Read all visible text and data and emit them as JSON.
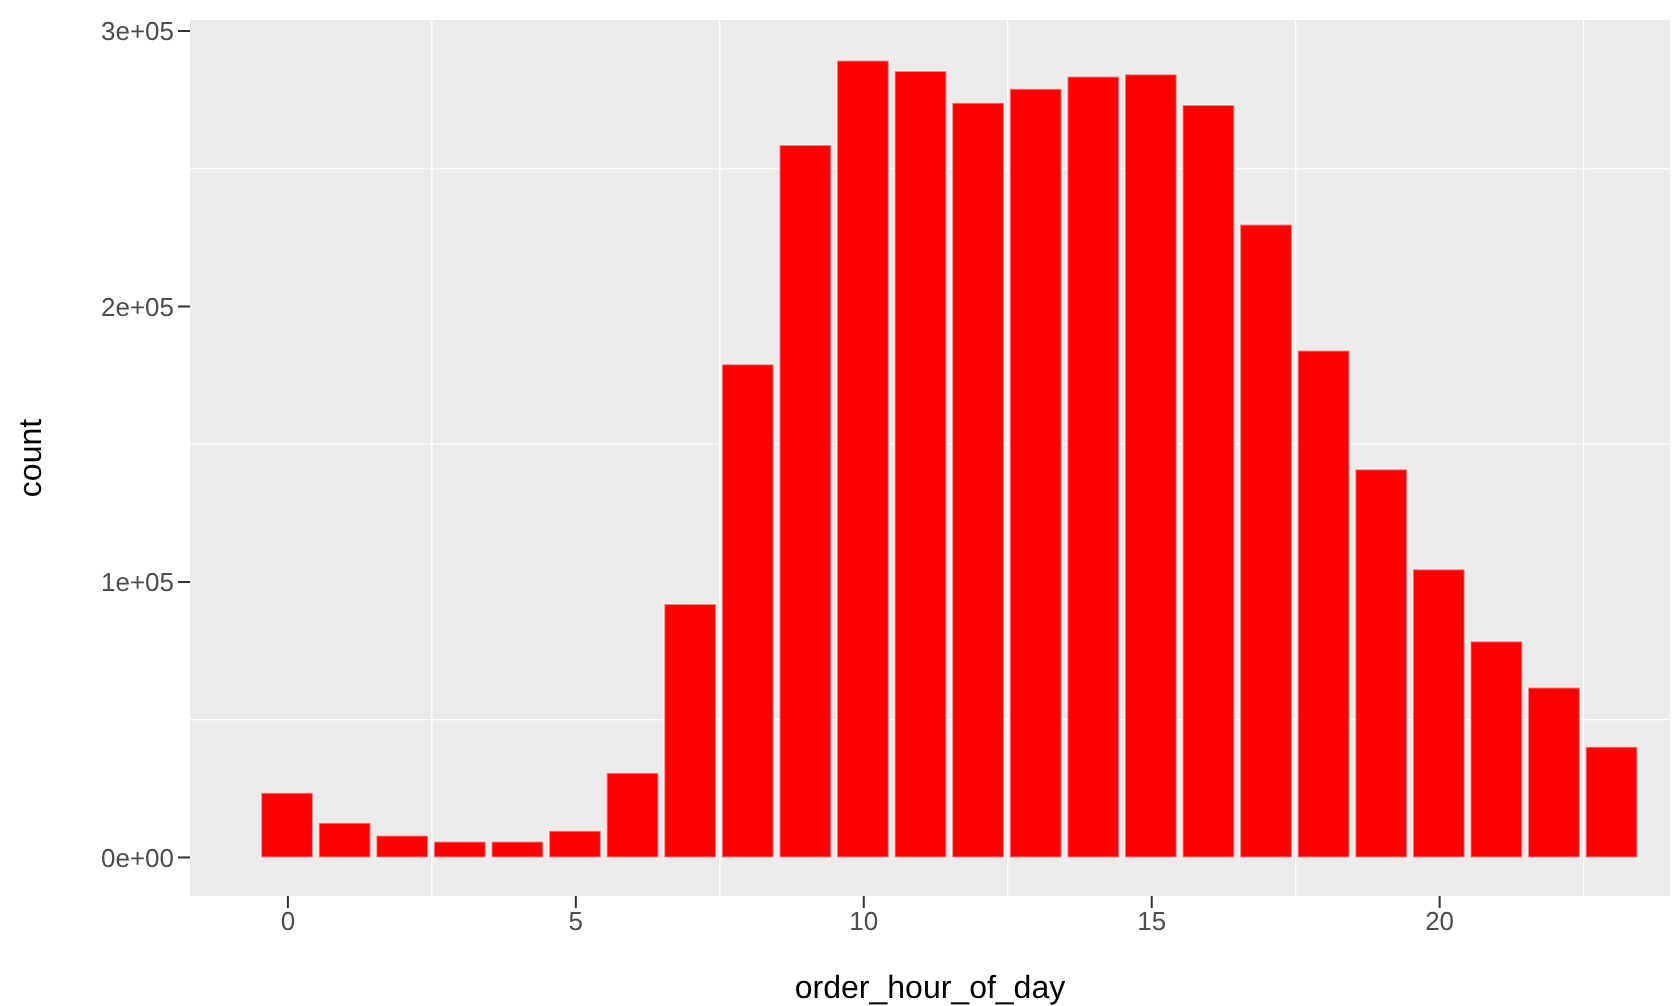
{
  "chart_data": {
    "type": "bar",
    "xlabel": "order_hour_of_day",
    "ylabel": "count",
    "x": [
      0,
      1,
      2,
      3,
      4,
      5,
      6,
      7,
      8,
      9,
      10,
      11,
      12,
      13,
      14,
      15,
      16,
      17,
      18,
      19,
      20,
      21,
      22,
      23
    ],
    "values": [
      23500,
      12600,
      8000,
      5800,
      5800,
      9700,
      30700,
      92000,
      179000,
      258600,
      289300,
      285500,
      274000,
      279000,
      283500,
      284300,
      273100,
      229800,
      184000,
      140900,
      104600,
      78500,
      61700,
      40200
    ],
    "color": "#ff0000",
    "xlim": [
      -1.7,
      24
    ],
    "xticks": [
      0,
      5,
      10,
      15,
      20
    ],
    "ylim": [
      -14000,
      304000
    ],
    "yticks": [
      {
        "value": 0,
        "label": "0e+00"
      },
      {
        "value": 100000,
        "label": "1e+05"
      },
      {
        "value": 200000,
        "label": "2e+05"
      },
      {
        "value": 300000,
        "label": "3e+05"
      }
    ],
    "grid": true
  }
}
